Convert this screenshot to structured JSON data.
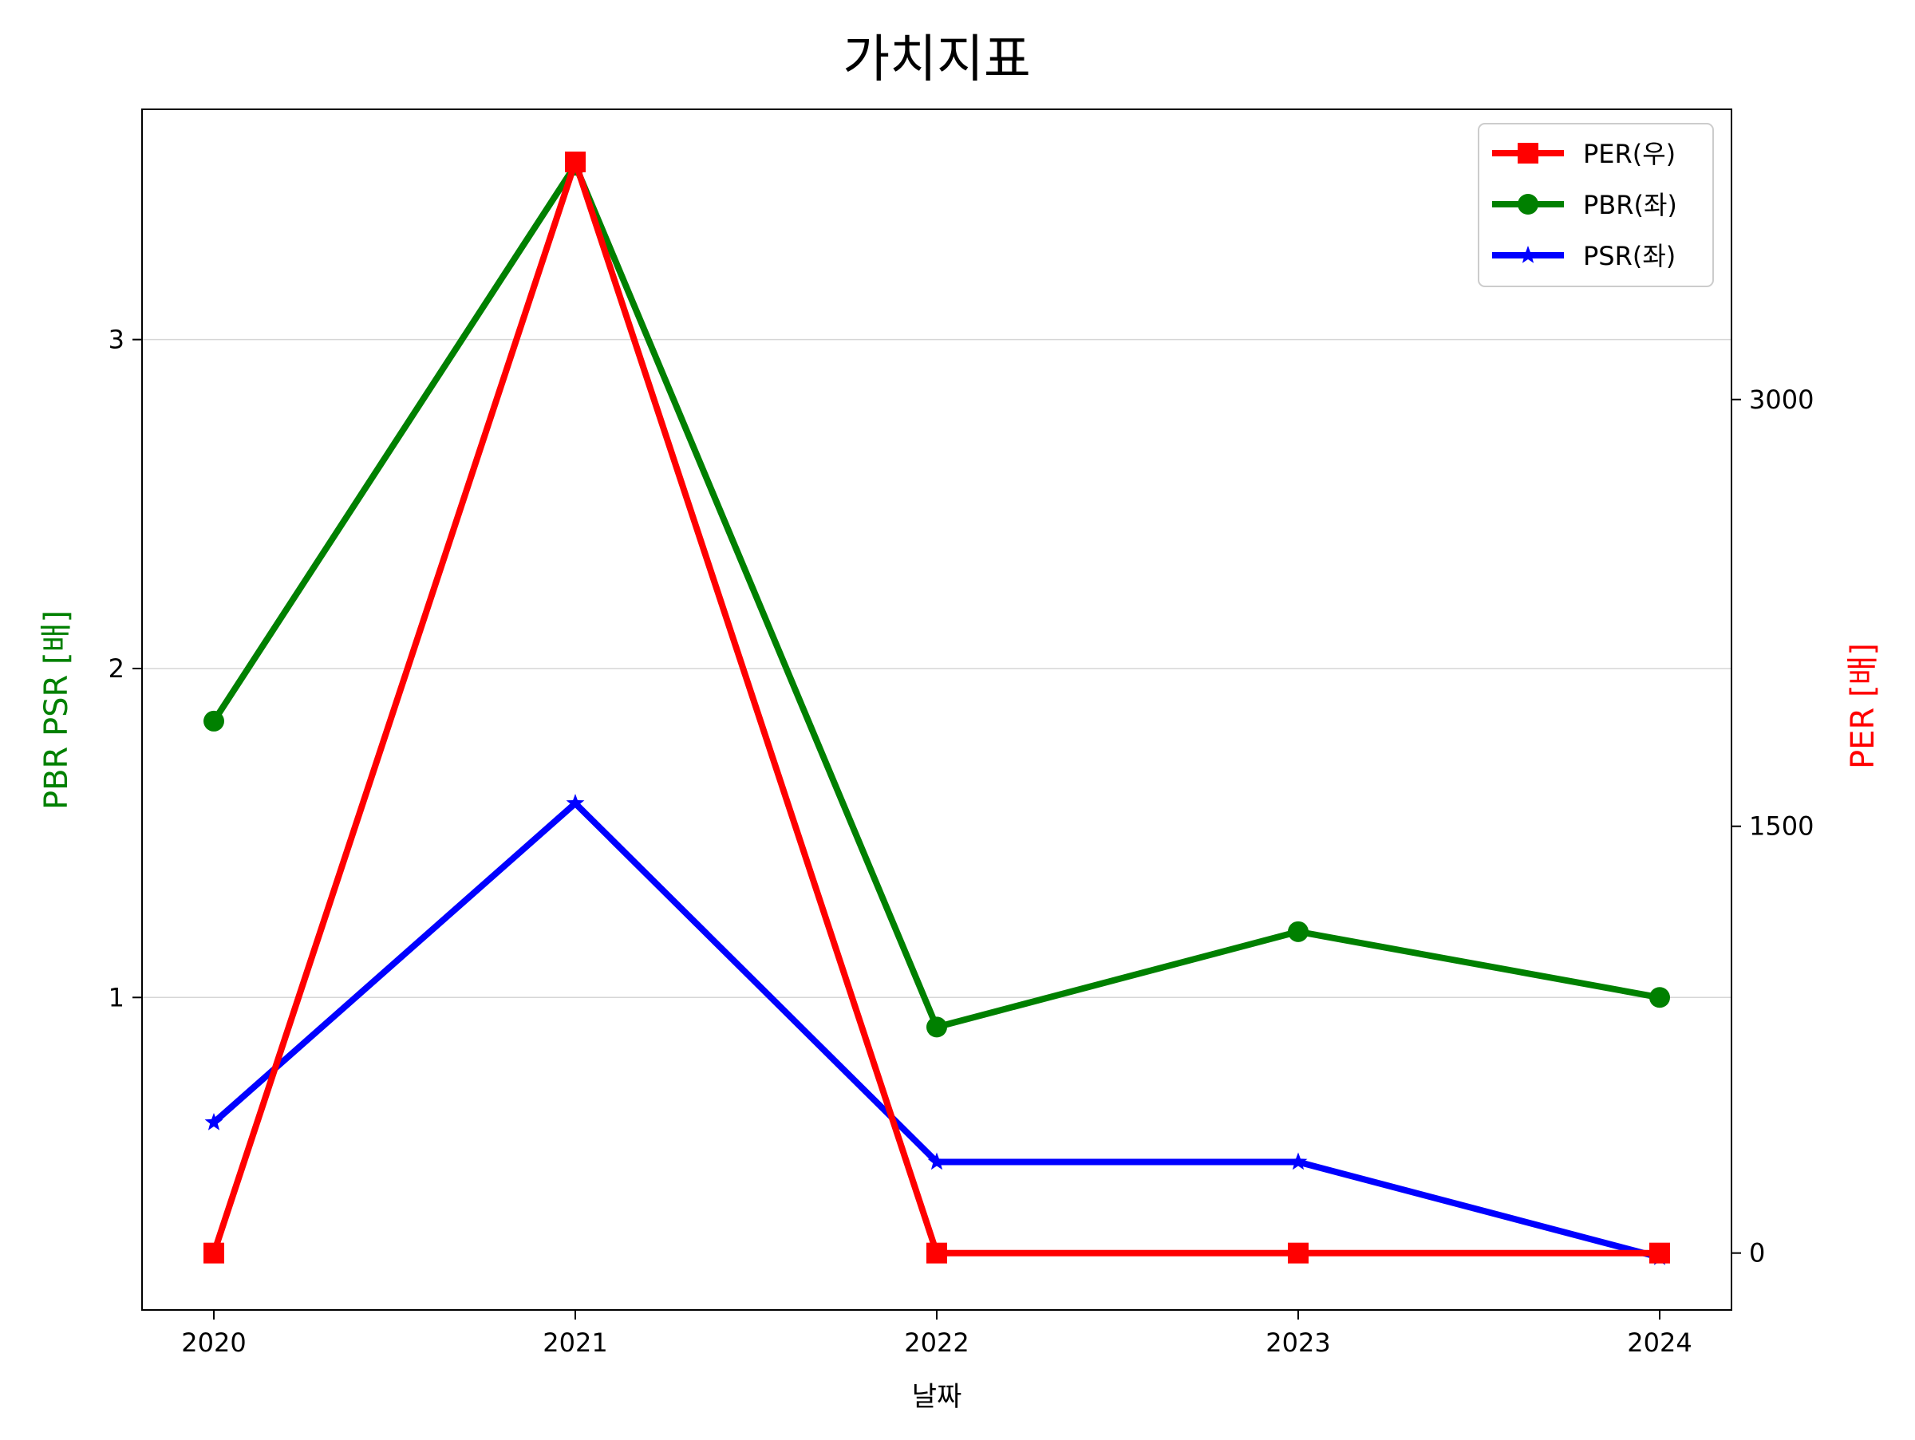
{
  "chart_data": {
    "type": "line",
    "title": "가치지표",
    "xlabel": "날짜",
    "ylabel_left": "PBR PSR [배]",
    "ylabel_right": "PER [배]",
    "categories": [
      "2020",
      "2021",
      "2022",
      "2023",
      "2024"
    ],
    "left_axis": {
      "ylim": [
        0.05,
        3.7
      ],
      "ticks": [
        1,
        2,
        3
      ],
      "tick_labels": [
        "1",
        "2",
        "3"
      ]
    },
    "right_axis": {
      "ylim": [
        -200,
        4020
      ],
      "ticks": [
        0,
        1500,
        3000
      ],
      "tick_labels": [
        "0",
        "1500",
        "3000"
      ]
    },
    "grid": "horizontal (left axis)",
    "legend_position": "top-right",
    "series": [
      {
        "name": "PER(우)",
        "axis": "right",
        "color": "#ff0000",
        "marker": "square",
        "values": [
          0,
          3835,
          0,
          0,
          0
        ]
      },
      {
        "name": "PBR(좌)",
        "axis": "left",
        "color": "#008000",
        "marker": "circle",
        "values": [
          1.84,
          3.53,
          0.91,
          1.2,
          1.0
        ]
      },
      {
        "name": "PSR(좌)",
        "axis": "left",
        "color": "#0000ff",
        "marker": "star",
        "values": [
          0.62,
          1.59,
          0.5,
          0.5,
          0.21
        ]
      }
    ]
  }
}
